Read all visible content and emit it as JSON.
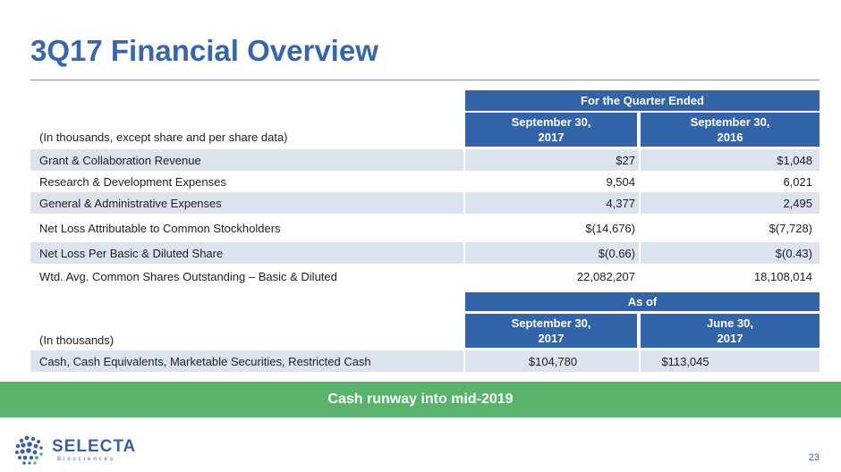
{
  "slide": {
    "title": "3Q17 Financial Overview",
    "page_number": "23"
  },
  "quarter_table": {
    "group_header": "For the Quarter Ended",
    "caption": "(In thousands, except share and per share data)",
    "col1_line1": "September 30,",
    "col1_line2": "2017",
    "col2_line1": "September 30,",
    "col2_line2": "2016",
    "rows": [
      {
        "label": "Grant & Collaboration Revenue",
        "v1": "$27",
        "v2": "$1,048"
      },
      {
        "label": "Research & Development Expenses",
        "v1": "9,504",
        "v2": "6,021"
      },
      {
        "label": "General & Administrative Expenses",
        "v1": "4,377",
        "v2": "2,495"
      },
      {
        "label": "Net Loss Attributable to Common Stockholders",
        "v1": "$(14,676)",
        "v2": "$(7,728)"
      },
      {
        "label": "Net Loss Per Basic & Diluted Share",
        "v1": "$(0.66)",
        "v2": "$(0.43)"
      },
      {
        "label": "Wtd. Avg. Common Shares Outstanding – Basic & Diluted",
        "v1": "22,082,207",
        "v2": "18,108,014"
      }
    ]
  },
  "cash_table": {
    "group_header": "As of",
    "caption": "(In thousands)",
    "col1_line1": "September 30,",
    "col1_line2": "2017",
    "col2_line1": "June 30,",
    "col2_line2": "2017",
    "rows": [
      {
        "label": "Cash, Cash Equivalents, Marketable Securities, Restricted Cash",
        "v1": "$104,780",
        "v2": "$113,045"
      }
    ]
  },
  "banner": {
    "text": "Cash runway into mid-2019",
    "color": "#5ab36a"
  },
  "logo": {
    "name": "SELECTA",
    "sub": "Biosciences"
  },
  "colors": {
    "title": "#3866a8",
    "header_fill": "#3464a8",
    "row_shade": "#dce2ee"
  }
}
